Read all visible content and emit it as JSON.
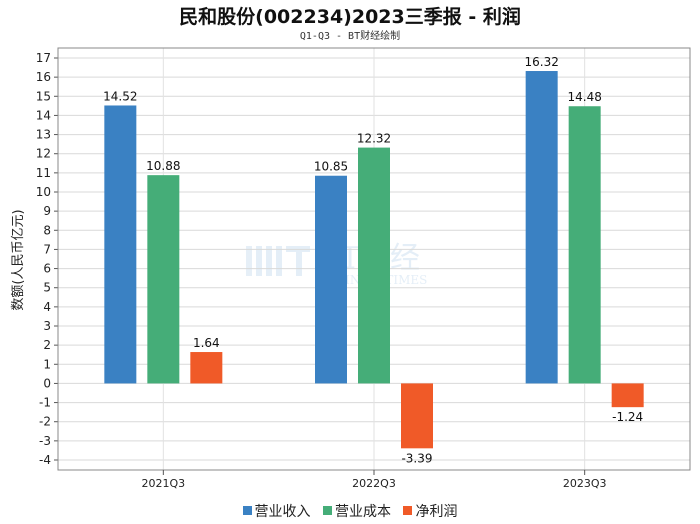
{
  "chart_data": {
    "type": "bar",
    "title": "民和股份(002234)2023三季报 - 利润",
    "subtitle": "Q1-Q3 - BT财经绘制",
    "xlabel": "",
    "ylabel": "数额(人民币亿元)",
    "categories": [
      "2021Q3",
      "2022Q3",
      "2023Q3"
    ],
    "series": [
      {
        "name": "营业收入",
        "values": [
          14.52,
          10.85,
          16.32
        ],
        "color": "#3a81c3"
      },
      {
        "name": "营业成本",
        "values": [
          10.88,
          12.32,
          14.48
        ],
        "color": "#45ad78"
      },
      {
        "name": "净利润",
        "values": [
          1.64,
          -3.39,
          -1.24
        ],
        "color": "#f05a28"
      }
    ],
    "ylim": [
      -4,
      17
    ],
    "yticks": [
      -4,
      -3,
      -2,
      -1,
      0,
      1,
      2,
      3,
      4,
      5,
      6,
      7,
      8,
      9,
      10,
      11,
      12,
      13,
      14,
      15,
      16,
      17
    ],
    "grid": true,
    "legend_position": "bottom"
  },
  "watermark": {
    "brand": "BT财经",
    "sub": "BUSINESSTIMES"
  }
}
